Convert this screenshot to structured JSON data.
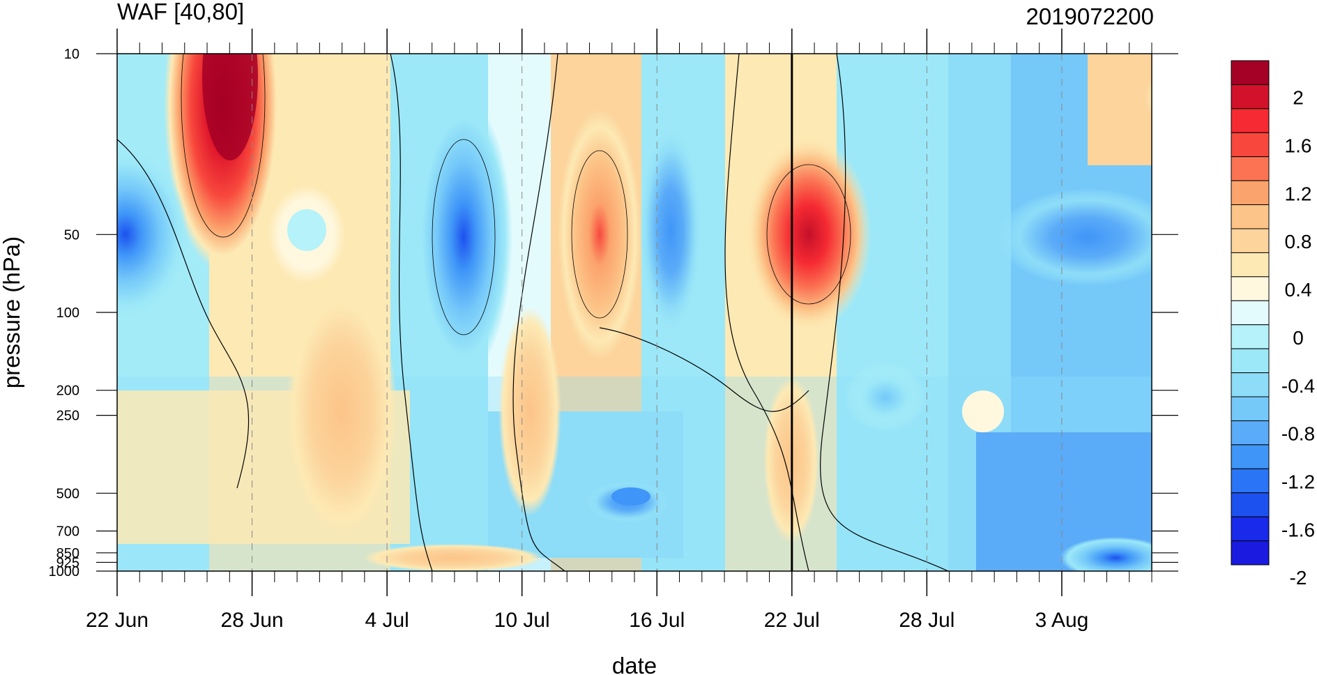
{
  "chart_data": {
    "type": "heatmap",
    "title": "WAF [40,80]",
    "subtitle": "2019072200",
    "xlabel": "date",
    "ylabel": "pressure (hPa)",
    "x_ticks": [
      "22 Jun",
      "28 Jun",
      "4 Jul",
      "10 Jul",
      "16 Jul",
      "22 Jul",
      "28 Jul",
      "3 Aug"
    ],
    "x_range": [
      "22 Jun",
      "7 Aug"
    ],
    "y_ticks": [
      "10",
      "50",
      "100",
      "200",
      "250",
      "500",
      "700",
      "850",
      "925",
      "1000"
    ],
    "y_range": [
      1000,
      10
    ],
    "y_scale": "log",
    "current_date_marker": "22 Jul",
    "colorbar_labels": [
      "2",
      "1.6",
      "1.2",
      "0.8",
      "0.4",
      "0",
      "-0.4",
      "-0.8",
      "-1.2",
      "-1.6",
      "-2"
    ],
    "colorbar_levels": [
      2.2,
      2.0,
      1.8,
      1.6,
      1.4,
      1.2,
      1.0,
      0.8,
      0.6,
      0.4,
      0.2,
      0.0,
      -0.2,
      -0.4,
      -0.6,
      -0.8,
      -1.0,
      -1.2,
      -1.4,
      -1.6,
      -1.8,
      -2.0
    ],
    "colorbar_colors": [
      "#a50026",
      "#d2112b",
      "#f52a32",
      "#f8483d",
      "#fb7353",
      "#fba36c",
      "#fcc488",
      "#fcd49c",
      "#fde9b4",
      "#fff8df",
      "#e4fbfd",
      "#b5f2f9",
      "#9ce8f8",
      "#8ddcf8",
      "#75c9f9",
      "#5aabf8",
      "#4096f8",
      "#2a74f6",
      "#1c51ef",
      "#1a2aea",
      "#1a1ae0"
    ],
    "features": [
      {
        "date": "27 Jun",
        "pressure": 10,
        "value": 2.1
      },
      {
        "date": "27 Jun",
        "pressure": 30,
        "value": 1.5
      },
      {
        "date": "22 Jun",
        "pressure": 50,
        "value": -1.7
      },
      {
        "date": "30 Jun",
        "pressure": 50,
        "value": -0.3
      },
      {
        "date": "7 Jul",
        "pressure": 50,
        "value": -1.4
      },
      {
        "date": "13 Jul",
        "pressure": 50,
        "value": 1.1
      },
      {
        "date": "16 Jul",
        "pressure": 50,
        "value": -0.9
      },
      {
        "date": "22 Jul",
        "pressure": 50,
        "value": 1.9
      },
      {
        "date": "5 Aug",
        "pressure": 50,
        "value": -1.1
      },
      {
        "date": "14 Jul",
        "pressure": 500,
        "value": -1.0
      },
      {
        "date": "6 Aug",
        "pressure": 950,
        "value": -1.6
      },
      {
        "date": "3 Jul",
        "pressure": 350,
        "value": 0.6
      },
      {
        "date": "30 Jul",
        "pressure": 250,
        "value": 0.0
      }
    ]
  }
}
